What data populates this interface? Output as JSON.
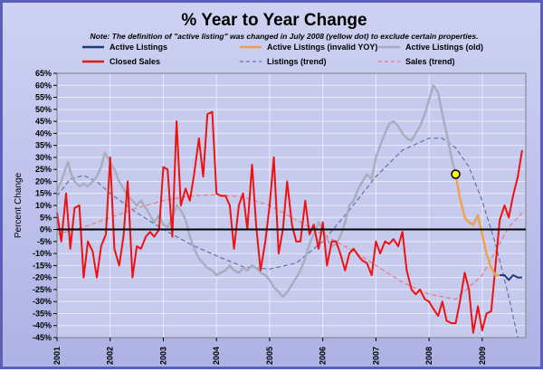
{
  "chart_data": {
    "type": "line",
    "title": "% Year to Year Change",
    "subtitle": "Note: The definition of \"active listing\" was changed in July 2008 (yellow dot) to exclude certain properties.",
    "ylabel": "Percent Change",
    "xlabel": "",
    "ylim": [
      -45,
      65
    ],
    "xlim": [
      2001.0,
      2009.82
    ],
    "grid": true,
    "legend_position": "top",
    "y_ticks": [
      "-45%",
      "-40%",
      "-35%",
      "-30%",
      "-25%",
      "-20%",
      "-15%",
      "-10%",
      "-5%",
      "0%",
      "5%",
      "10%",
      "15%",
      "20%",
      "25%",
      "30%",
      "35%",
      "40%",
      "45%",
      "50%",
      "55%",
      "60%",
      "65%"
    ],
    "x_ticks": [
      "2001",
      "2002",
      "2003",
      "2004",
      "2005",
      "2006",
      "2007",
      "2008",
      "2009"
    ],
    "highlight_point": {
      "x": 2008.5,
      "y": 23,
      "color": "#ffff00"
    },
    "series": [
      {
        "name": "Active Listings",
        "color": "#1f3a7a",
        "style": "solid",
        "points": [
          [
            2009.33,
            -19
          ],
          [
            2009.42,
            -19
          ],
          [
            2009.5,
            -21
          ],
          [
            2009.58,
            -19
          ],
          [
            2009.67,
            -20
          ],
          [
            2009.75,
            -20
          ]
        ]
      },
      {
        "name": "Active Listings (invalid YOY)",
        "color": "#f0a050",
        "style": "solid",
        "points": [
          [
            2008.5,
            23
          ],
          [
            2008.58,
            13
          ],
          [
            2008.67,
            5
          ],
          [
            2008.75,
            3
          ],
          [
            2008.83,
            2
          ],
          [
            2008.92,
            6
          ],
          [
            2009.0,
            -2
          ],
          [
            2009.08,
            -10
          ],
          [
            2009.17,
            -16
          ],
          [
            2009.25,
            -19
          ],
          [
            2009.33,
            -19
          ]
        ]
      },
      {
        "name": "Active Listings (old)",
        "color": "#a8aec0",
        "style": "solid",
        "points": [
          [
            2001.0,
            16
          ],
          [
            2001.08,
            20
          ],
          [
            2001.17,
            26
          ],
          [
            2001.21,
            28
          ],
          [
            2001.25,
            24
          ],
          [
            2001.33,
            20
          ],
          [
            2001.42,
            18
          ],
          [
            2001.5,
            19
          ],
          [
            2001.58,
            18
          ],
          [
            2001.67,
            20
          ],
          [
            2001.75,
            22
          ],
          [
            2001.83,
            26
          ],
          [
            2001.9,
            32
          ],
          [
            2002.0,
            28
          ],
          [
            2002.08,
            25
          ],
          [
            2002.17,
            20
          ],
          [
            2002.25,
            17
          ],
          [
            2002.33,
            14
          ],
          [
            2002.42,
            12
          ],
          [
            2002.5,
            10
          ],
          [
            2002.58,
            12
          ],
          [
            2002.67,
            9
          ],
          [
            2002.75,
            6
          ],
          [
            2002.83,
            3
          ],
          [
            2002.92,
            6
          ],
          [
            2003.0,
            2
          ],
          [
            2003.08,
            1
          ],
          [
            2003.17,
            5
          ],
          [
            2003.25,
            10
          ],
          [
            2003.33,
            8
          ],
          [
            2003.42,
            4
          ],
          [
            2003.5,
            -3
          ],
          [
            2003.58,
            -8
          ],
          [
            2003.67,
            -12
          ],
          [
            2003.75,
            -14
          ],
          [
            2003.83,
            -16
          ],
          [
            2003.92,
            -17
          ],
          [
            2004.0,
            -19
          ],
          [
            2004.08,
            -18
          ],
          [
            2004.17,
            -17
          ],
          [
            2004.25,
            -15
          ],
          [
            2004.33,
            -17
          ],
          [
            2004.42,
            -18
          ],
          [
            2004.5,
            -16
          ],
          [
            2004.58,
            -17
          ],
          [
            2004.67,
            -15
          ],
          [
            2004.75,
            -16
          ],
          [
            2004.83,
            -18
          ],
          [
            2004.92,
            -19
          ],
          [
            2005.0,
            -21
          ],
          [
            2005.08,
            -24
          ],
          [
            2005.17,
            -26
          ],
          [
            2005.25,
            -28
          ],
          [
            2005.33,
            -26
          ],
          [
            2005.42,
            -23
          ],
          [
            2005.5,
            -20
          ],
          [
            2005.58,
            -17
          ],
          [
            2005.67,
            -12
          ],
          [
            2005.75,
            -6
          ],
          [
            2005.83,
            -2
          ],
          [
            2005.92,
            3
          ],
          [
            2006.0,
            0
          ],
          [
            2006.08,
            -4
          ],
          [
            2006.17,
            -7
          ],
          [
            2006.25,
            -6
          ],
          [
            2006.33,
            -3
          ],
          [
            2006.42,
            3
          ],
          [
            2006.5,
            10
          ],
          [
            2006.58,
            12
          ],
          [
            2006.67,
            17
          ],
          [
            2006.75,
            20
          ],
          [
            2006.83,
            23
          ],
          [
            2006.92,
            21
          ],
          [
            2007.0,
            30
          ],
          [
            2007.08,
            35
          ],
          [
            2007.17,
            40
          ],
          [
            2007.25,
            44
          ],
          [
            2007.33,
            45
          ],
          [
            2007.42,
            43
          ],
          [
            2007.5,
            40
          ],
          [
            2007.58,
            38
          ],
          [
            2007.67,
            37
          ],
          [
            2007.75,
            40
          ],
          [
            2007.83,
            43
          ],
          [
            2007.92,
            48
          ],
          [
            2008.0,
            54
          ],
          [
            2008.08,
            60
          ],
          [
            2008.17,
            57
          ],
          [
            2008.25,
            48
          ],
          [
            2008.33,
            40
          ],
          [
            2008.42,
            30
          ],
          [
            2008.5,
            23
          ]
        ]
      },
      {
        "name": "Closed Sales",
        "color": "#ee1111",
        "style": "solid",
        "points": [
          [
            2001.0,
            7
          ],
          [
            2001.08,
            -5
          ],
          [
            2001.17,
            15
          ],
          [
            2001.25,
            -8
          ],
          [
            2001.33,
            9
          ],
          [
            2001.42,
            10
          ],
          [
            2001.5,
            -20
          ],
          [
            2001.58,
            -5
          ],
          [
            2001.67,
            -9
          ],
          [
            2001.75,
            -20
          ],
          [
            2001.83,
            -7
          ],
          [
            2001.92,
            -2
          ],
          [
            2002.0,
            30
          ],
          [
            2002.08,
            -8
          ],
          [
            2002.17,
            -15
          ],
          [
            2002.25,
            -3
          ],
          [
            2002.33,
            20
          ],
          [
            2002.42,
            -20
          ],
          [
            2002.5,
            -7
          ],
          [
            2002.58,
            -8
          ],
          [
            2002.67,
            -3
          ],
          [
            2002.75,
            -1
          ],
          [
            2002.83,
            -3
          ],
          [
            2002.92,
            0
          ],
          [
            2003.0,
            26
          ],
          [
            2003.08,
            25
          ],
          [
            2003.17,
            -3
          ],
          [
            2003.25,
            45
          ],
          [
            2003.33,
            10
          ],
          [
            2003.42,
            17
          ],
          [
            2003.5,
            12
          ],
          [
            2003.58,
            23
          ],
          [
            2003.67,
            38
          ],
          [
            2003.75,
            22
          ],
          [
            2003.83,
            48
          ],
          [
            2003.92,
            49
          ],
          [
            2004.0,
            15
          ],
          [
            2004.08,
            14
          ],
          [
            2004.17,
            14
          ],
          [
            2004.25,
            10
          ],
          [
            2004.33,
            -8
          ],
          [
            2004.42,
            10
          ],
          [
            2004.5,
            15
          ],
          [
            2004.58,
            0
          ],
          [
            2004.67,
            27
          ],
          [
            2004.75,
            1
          ],
          [
            2004.83,
            -17
          ],
          [
            2004.92,
            -5
          ],
          [
            2005.0,
            10
          ],
          [
            2005.08,
            30
          ],
          [
            2005.17,
            -10
          ],
          [
            2005.25,
            0
          ],
          [
            2005.33,
            20
          ],
          [
            2005.42,
            2
          ],
          [
            2005.5,
            -5
          ],
          [
            2005.58,
            -5
          ],
          [
            2005.67,
            12
          ],
          [
            2005.75,
            -2
          ],
          [
            2005.83,
            2
          ],
          [
            2005.92,
            -8
          ],
          [
            2006.0,
            3
          ],
          [
            2006.08,
            -15
          ],
          [
            2006.17,
            -5
          ],
          [
            2006.25,
            -5
          ],
          [
            2006.33,
            -10
          ],
          [
            2006.42,
            -17
          ],
          [
            2006.5,
            -10
          ],
          [
            2006.58,
            -8
          ],
          [
            2006.67,
            -11
          ],
          [
            2006.75,
            -13
          ],
          [
            2006.83,
            -14
          ],
          [
            2006.92,
            -19
          ],
          [
            2007.0,
            -5
          ],
          [
            2007.08,
            -10
          ],
          [
            2007.17,
            -5
          ],
          [
            2007.25,
            -6
          ],
          [
            2007.33,
            -4
          ],
          [
            2007.42,
            -7
          ],
          [
            2007.5,
            -1
          ],
          [
            2007.58,
            -17
          ],
          [
            2007.67,
            -25
          ],
          [
            2007.75,
            -27
          ],
          [
            2007.83,
            -25
          ],
          [
            2007.92,
            -29
          ],
          [
            2008.0,
            -30
          ],
          [
            2008.08,
            -33
          ],
          [
            2008.17,
            -36
          ],
          [
            2008.25,
            -30
          ],
          [
            2008.33,
            -38
          ],
          [
            2008.42,
            -39
          ],
          [
            2008.5,
            -39
          ],
          [
            2008.58,
            -30
          ],
          [
            2008.67,
            -18
          ],
          [
            2008.75,
            -25
          ],
          [
            2008.83,
            -43
          ],
          [
            2008.92,
            -32
          ],
          [
            2009.0,
            -42
          ],
          [
            2009.08,
            -35
          ],
          [
            2009.17,
            -34
          ],
          [
            2009.25,
            -15
          ],
          [
            2009.33,
            4
          ],
          [
            2009.42,
            10
          ],
          [
            2009.5,
            5
          ],
          [
            2009.58,
            14
          ],
          [
            2009.67,
            22
          ],
          [
            2009.75,
            33
          ]
        ]
      },
      {
        "name": "Listings (trend)",
        "color": "#6670a8",
        "style": "dashed",
        "points": [
          [
            2001.0,
            14
          ],
          [
            2001.25,
            21
          ],
          [
            2001.5,
            22.5
          ],
          [
            2001.75,
            20
          ],
          [
            2002.0,
            15
          ],
          [
            2002.5,
            7
          ],
          [
            2003.0,
            0
          ],
          [
            2003.5,
            -6
          ],
          [
            2004.0,
            -11
          ],
          [
            2004.5,
            -15.5
          ],
          [
            2005.0,
            -16.5
          ],
          [
            2005.5,
            -14
          ],
          [
            2006.0,
            -5
          ],
          [
            2006.5,
            8
          ],
          [
            2007.0,
            22
          ],
          [
            2007.5,
            33
          ],
          [
            2008.0,
            38
          ],
          [
            2008.25,
            38
          ],
          [
            2008.5,
            34
          ],
          [
            2008.75,
            26
          ],
          [
            2009.0,
            12
          ],
          [
            2009.25,
            -6
          ],
          [
            2009.5,
            -28
          ],
          [
            2009.67,
            -45
          ]
        ]
      },
      {
        "name": "Sales (trend)",
        "color": "#ee7777",
        "style": "dashed",
        "points": [
          [
            2001.0,
            -2
          ],
          [
            2001.5,
            1
          ],
          [
            2002.0,
            5
          ],
          [
            2002.5,
            9
          ],
          [
            2003.0,
            12
          ],
          [
            2003.5,
            14
          ],
          [
            2004.0,
            14.5
          ],
          [
            2004.5,
            13.5
          ],
          [
            2005.0,
            10
          ],
          [
            2005.5,
            4
          ],
          [
            2006.0,
            -2
          ],
          [
            2006.5,
            -8
          ],
          [
            2007.0,
            -15
          ],
          [
            2007.5,
            -22
          ],
          [
            2008.0,
            -27
          ],
          [
            2008.5,
            -29
          ],
          [
            2009.0,
            -19
          ],
          [
            2009.5,
            1
          ],
          [
            2009.75,
            7
          ]
        ]
      }
    ]
  }
}
